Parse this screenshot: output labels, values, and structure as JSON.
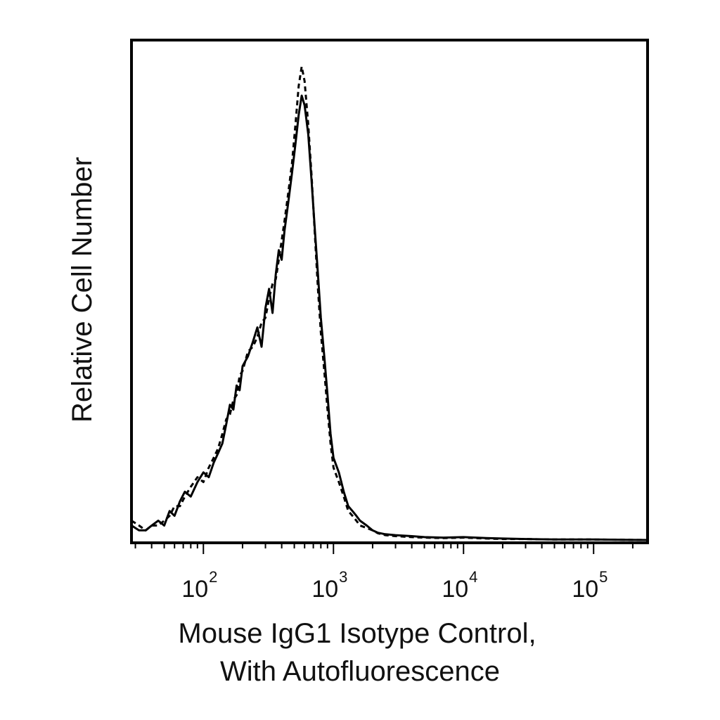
{
  "chart_data": {
    "type": "line",
    "title": "",
    "xlabel_lines": [
      "Mouse IgG1 Isotype Control,",
      "With Autofluorescence"
    ],
    "ylabel": "Relative Cell Number",
    "x_scale": "log",
    "xlim": [
      28,
      260000
    ],
    "ylim": [
      0,
      100
    ],
    "x_ticks": [
      {
        "value": 100,
        "base": "10",
        "exp": "2"
      },
      {
        "value": 1000,
        "base": "10",
        "exp": "3"
      },
      {
        "value": 10000,
        "base": "10",
        "exp": "4"
      },
      {
        "value": 100000,
        "base": "10",
        "exp": "5"
      }
    ],
    "grid": false,
    "legend": "none",
    "series": [
      {
        "style": "solid",
        "x": [
          28,
          32,
          36,
          40,
          45,
          50,
          55,
          60,
          66,
          72,
          80,
          90,
          100,
          110,
          120,
          130,
          140,
          150,
          160,
          170,
          180,
          190,
          200,
          220,
          240,
          260,
          280,
          300,
          320,
          340,
          360,
          380,
          400,
          420,
          450,
          480,
          510,
          540,
          570,
          600,
          640,
          680,
          720,
          760,
          800,
          850,
          900,
          950,
          1000,
          1100,
          1200,
          1300,
          1400,
          1500,
          1600,
          1800,
          2000,
          2200,
          2500,
          3000,
          4000,
          5000,
          7000,
          10000,
          15000,
          20000,
          30000,
          50000,
          100000,
          260000
        ],
        "y": [
          3,
          2,
          2,
          3,
          4,
          3,
          6,
          5,
          8,
          10,
          9,
          12,
          14,
          13,
          16,
          18,
          20,
          24,
          28,
          27,
          32,
          31,
          36,
          38,
          41,
          44,
          40,
          48,
          52,
          47,
          55,
          60,
          58,
          64,
          70,
          76,
          82,
          88,
          92,
          90,
          84,
          74,
          64,
          55,
          46,
          38,
          30,
          22,
          17,
          14,
          10,
          7,
          6,
          5,
          4,
          3,
          2,
          1.5,
          1.2,
          1,
          0.8,
          0.6,
          0.5,
          0.6,
          0.4,
          0.3,
          0.2,
          0.1,
          0.1,
          0
        ]
      },
      {
        "style": "dashed",
        "x": [
          28,
          32,
          36,
          40,
          45,
          50,
          55,
          60,
          66,
          72,
          80,
          90,
          100,
          110,
          120,
          130,
          140,
          150,
          160,
          170,
          180,
          190,
          200,
          220,
          240,
          260,
          280,
          300,
          320,
          340,
          360,
          380,
          400,
          420,
          450,
          480,
          510,
          540,
          570,
          600,
          640,
          680,
          720,
          760,
          800,
          850,
          900,
          950,
          1000,
          1100,
          1200,
          1300,
          1400,
          1500,
          1600,
          1800,
          2000,
          2200,
          2500,
          3000,
          4000,
          5000,
          7000,
          10000,
          15000,
          20000,
          30000,
          50000,
          100000,
          260000
        ],
        "y": [
          4,
          3,
          2,
          3,
          3,
          4,
          5,
          7,
          7,
          9,
          11,
          13,
          12,
          15,
          17,
          19,
          22,
          25,
          26,
          29,
          30,
          34,
          35,
          39,
          40,
          42,
          45,
          46,
          50,
          53,
          54,
          58,
          62,
          66,
          72,
          78,
          86,
          94,
          98,
          95,
          86,
          75,
          63,
          52,
          43,
          35,
          27,
          20,
          15,
          12,
          9,
          6,
          5,
          4,
          3,
          2.5,
          2,
          1.4,
          1,
          0.8,
          0.6,
          0.5,
          0.4,
          0.5,
          0.3,
          0.2,
          0.2,
          0.1,
          0.1,
          0
        ]
      }
    ]
  }
}
